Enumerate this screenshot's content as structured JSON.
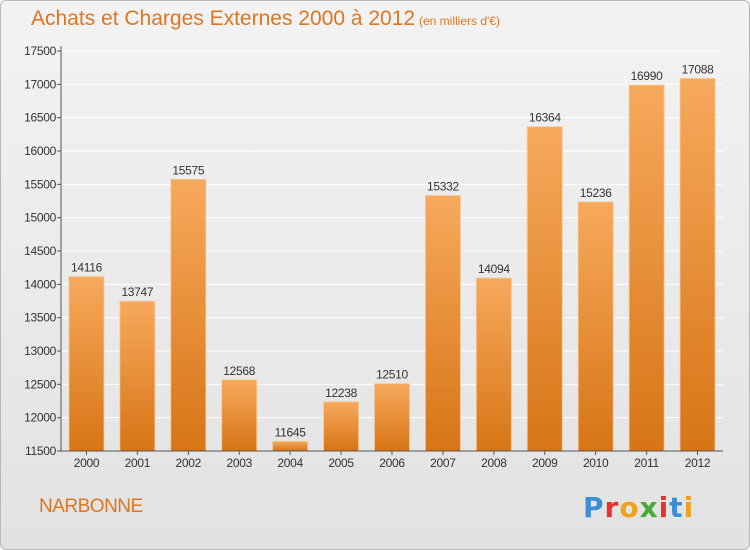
{
  "header": {
    "title": "Achats et Charges Externes 2000 à 2012",
    "unit": "(en milliers d'€)"
  },
  "footer": {
    "place": "NARBONNE",
    "logo": {
      "letters": [
        "P",
        "r",
        "o",
        "x",
        "i",
        "t",
        "i"
      ],
      "colors": [
        "#3c8fd6",
        "#e9322d",
        "#f0a21c",
        "#4aa83a",
        "#e9322d",
        "#3c8fd6",
        "#f0a21c"
      ]
    }
  },
  "chart_data": {
    "type": "bar",
    "categories": [
      "2000",
      "2001",
      "2002",
      "2003",
      "2004",
      "2005",
      "2006",
      "2007",
      "2008",
      "2009",
      "2010",
      "2011",
      "2012"
    ],
    "values": [
      14116,
      13747,
      15575,
      12568,
      11645,
      12238,
      12510,
      15332,
      14094,
      16364,
      15236,
      16990,
      17088
    ],
    "data_labels": [
      "14116",
      "13747",
      "15575",
      "12568",
      "11645",
      "12238",
      "12510",
      "15332",
      "14094",
      "16364",
      "15236",
      "16990",
      "17088"
    ],
    "yticks": [
      "11500",
      "12000",
      "12500",
      "13000",
      "13500",
      "14000",
      "14500",
      "15000",
      "15500",
      "16000",
      "16500",
      "17000",
      "17500"
    ],
    "ylim": [
      11500,
      17500
    ],
    "title": "Achats et Charges Externes 2000 à 2012",
    "xlabel": "",
    "ylabel": "",
    "grid": true,
    "colors": {
      "bar_top": "#f7a95c",
      "bar_bottom": "#d77516",
      "grid": "#ffffff",
      "title": "#e0761f"
    }
  }
}
